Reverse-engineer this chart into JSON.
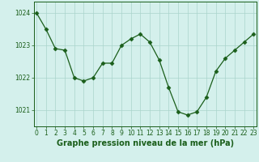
{
  "x": [
    0,
    1,
    2,
    3,
    4,
    5,
    6,
    7,
    8,
    9,
    10,
    11,
    12,
    13,
    14,
    15,
    16,
    17,
    18,
    19,
    20,
    21,
    22,
    23
  ],
  "y": [
    1024.0,
    1023.5,
    1022.9,
    1022.85,
    1022.0,
    1021.9,
    1022.0,
    1022.45,
    1022.45,
    1023.0,
    1023.2,
    1023.35,
    1023.1,
    1022.55,
    1021.7,
    1020.95,
    1020.85,
    1020.95,
    1021.4,
    1022.2,
    1022.6,
    1022.85,
    1023.1,
    1023.35
  ],
  "line_color": "#1a5e1a",
  "marker": "D",
  "marker_size": 2.5,
  "bg_color": "#d4f0ec",
  "grid_color": "#aad4cc",
  "axis_color": "#1a5e1a",
  "tick_color": "#1a5e1a",
  "ylabel_ticks": [
    1021,
    1022,
    1023,
    1024
  ],
  "xlim": [
    -0.3,
    23.3
  ],
  "ylim": [
    1020.5,
    1024.35
  ],
  "xlabel": "Graphe pression niveau de la mer (hPa)",
  "xlabel_fontsize": 7,
  "tick_fontsize": 5.5
}
